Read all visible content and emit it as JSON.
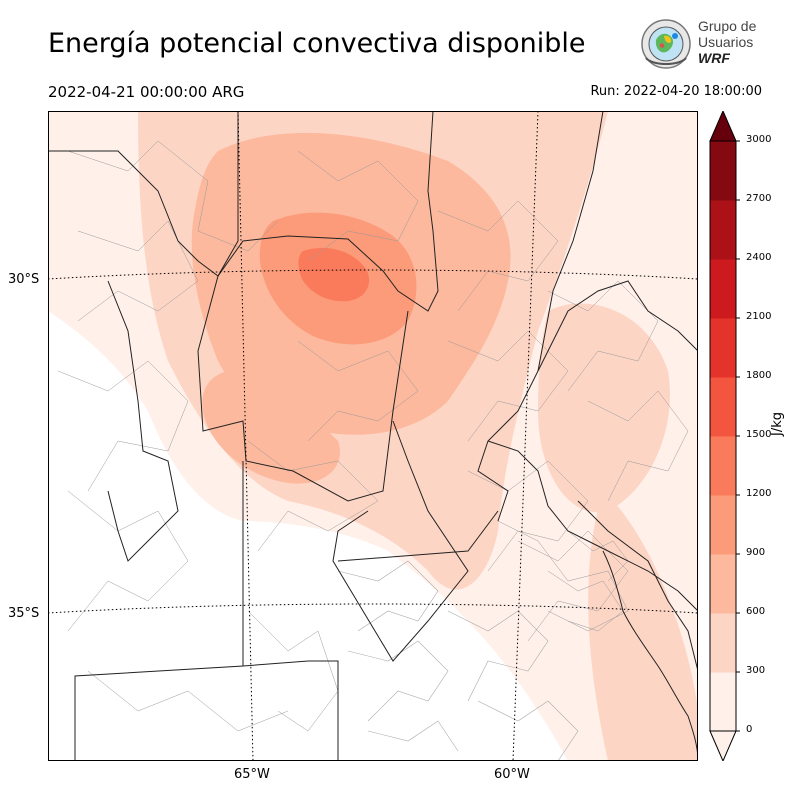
{
  "header": {
    "title": "Energía potencial convectiva disponible",
    "valid_time": "2022-04-21 00:00:00 ARG",
    "run_time": "Run: 2022-04-20 18:00:00"
  },
  "logo": {
    "line1": "Grupo de",
    "line2": "Usuarios",
    "line3": "WRF"
  },
  "map": {
    "lat_labels": [
      "30°S",
      "35°S"
    ],
    "lon_labels": [
      "65°W",
      "60°W"
    ]
  },
  "colorbar": {
    "unit": "J/kg",
    "tick_labels": [
      "0",
      "300",
      "600",
      "900",
      "1200",
      "1500",
      "1800",
      "2100",
      "2400",
      "2700",
      "3000"
    ],
    "levels": [
      0,
      300,
      600,
      900,
      1200,
      1500,
      1800,
      2100,
      2400,
      2700,
      3000
    ],
    "colors": [
      "#fff0ea",
      "#fdd5c5",
      "#fcb99d",
      "#fc9b79",
      "#fa7b5b",
      "#f4553f",
      "#e3332b",
      "#cc1a1f",
      "#ac1117",
      "#850911"
    ],
    "over_color": "#67000d",
    "extend": "max"
  }
}
